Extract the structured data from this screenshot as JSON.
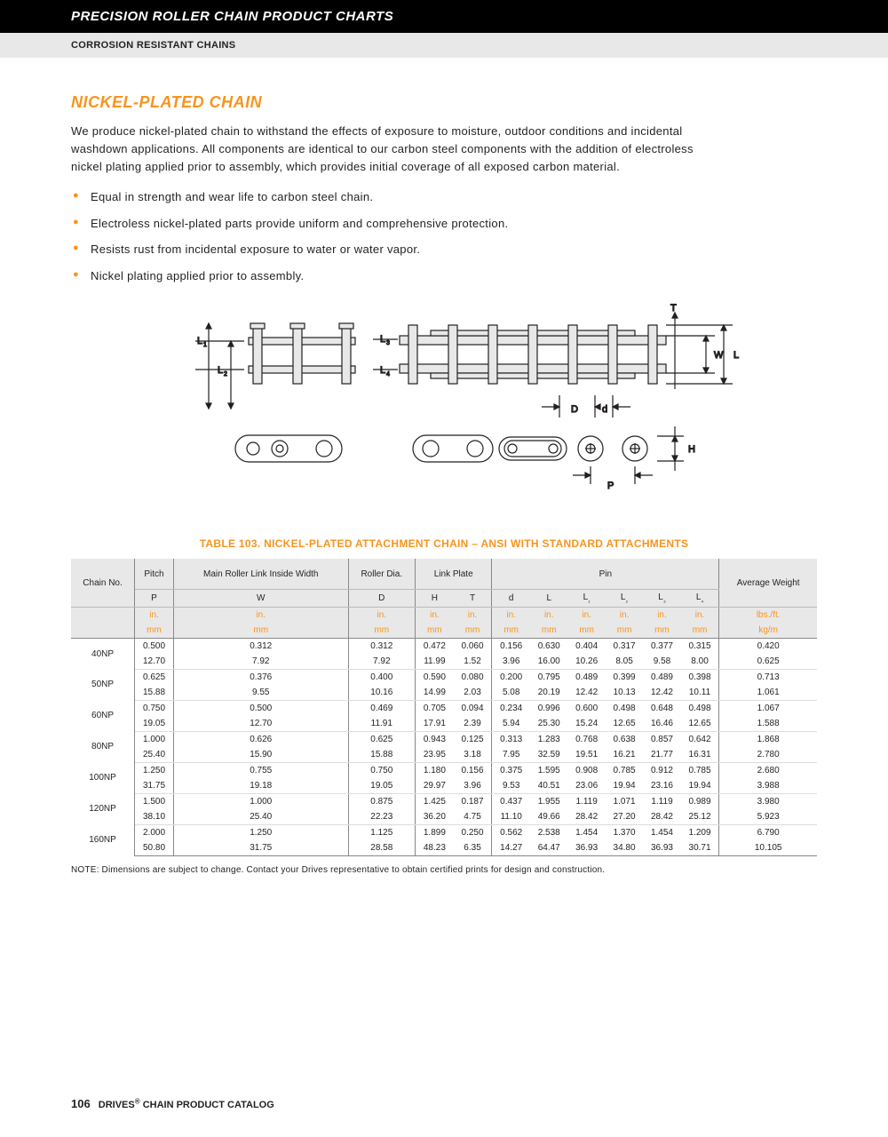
{
  "header": {
    "black": "PRECISION ROLLER CHAIN PRODUCT CHARTS",
    "gray": "CORROSION RESISTANT CHAINS"
  },
  "section": {
    "title": "NICKEL-PLATED CHAIN",
    "paragraph": "We produce nickel-plated chain to withstand the effects of exposure to moisture, outdoor conditions and incidental washdown applications. All components are identical to our carbon steel components with the addition of electroless nickel plating applied prior to assembly, which provides initial coverage of all exposed carbon material.",
    "bullets": [
      "Equal in strength and wear life to carbon steel chain.",
      "Electroless nickel-plated parts provide uniform and comprehensive protection.",
      "Resists rust from incidental exposure to water or water vapor.",
      "Nickel plating applied prior to assembly."
    ]
  },
  "table": {
    "title": "TABLE 103. NICKEL-PLATED ATTACHMENT CHAIN – ANSI WITH STANDARD ATTACHMENTS",
    "group_headers": {
      "chain_no": "Chain No.",
      "pitch": "Pitch",
      "main_roller": "Main Roller Link Inside Width",
      "roller_dia": "Roller Dia.",
      "link_plate": "Link Plate",
      "pin": "Pin",
      "avg_weight": "Average Weight"
    },
    "symbols": [
      "P",
      "W",
      "D",
      "H",
      "T",
      "d",
      "L",
      "L₁",
      "L₂",
      "L₃",
      "L₄"
    ],
    "units_in": [
      "in.",
      "in.",
      "in.",
      "in.",
      "in.",
      "in.",
      "in.",
      "in.",
      "in.",
      "in.",
      "in.",
      "lbs./ft."
    ],
    "units_mm": [
      "mm",
      "mm",
      "mm",
      "mm",
      "mm",
      "mm",
      "mm",
      "mm",
      "mm",
      "mm",
      "mm",
      "kg/m"
    ],
    "rows": [
      {
        "no": "40NP",
        "in": [
          "0.500",
          "0.312",
          "0.312",
          "0.472",
          "0.060",
          "0.156",
          "0.630",
          "0.404",
          "0.317",
          "0.377",
          "0.315",
          "0.420"
        ],
        "mm": [
          "12.70",
          "7.92",
          "7.92",
          "11.99",
          "1.52",
          "3.96",
          "16.00",
          "10.26",
          "8.05",
          "9.58",
          "8.00",
          "0.625"
        ]
      },
      {
        "no": "50NP",
        "in": [
          "0.625",
          "0.376",
          "0.400",
          "0.590",
          "0.080",
          "0.200",
          "0.795",
          "0.489",
          "0.399",
          "0.489",
          "0.398",
          "0.713"
        ],
        "mm": [
          "15.88",
          "9.55",
          "10.16",
          "14.99",
          "2.03",
          "5.08",
          "20.19",
          "12.42",
          "10.13",
          "12.42",
          "10.11",
          "1.061"
        ]
      },
      {
        "no": "60NP",
        "in": [
          "0.750",
          "0.500",
          "0.469",
          "0.705",
          "0.094",
          "0.234",
          "0.996",
          "0.600",
          "0.498",
          "0.648",
          "0.498",
          "1.067"
        ],
        "mm": [
          "19.05",
          "12.70",
          "11.91",
          "17.91",
          "2.39",
          "5.94",
          "25.30",
          "15.24",
          "12.65",
          "16.46",
          "12.65",
          "1.588"
        ]
      },
      {
        "no": "80NP",
        "in": [
          "1.000",
          "0.626",
          "0.625",
          "0.943",
          "0.125",
          "0.313",
          "1.283",
          "0.768",
          "0.638",
          "0.857",
          "0.642",
          "1.868"
        ],
        "mm": [
          "25.40",
          "15.90",
          "15.88",
          "23.95",
          "3.18",
          "7.95",
          "32.59",
          "19.51",
          "16.21",
          "21.77",
          "16.31",
          "2.780"
        ]
      },
      {
        "no": "100NP",
        "in": [
          "1.250",
          "0.755",
          "0.750",
          "1.180",
          "0.156",
          "0.375",
          "1.595",
          "0.908",
          "0.785",
          "0.912",
          "0.785",
          "2.680"
        ],
        "mm": [
          "31.75",
          "19.18",
          "19.05",
          "29.97",
          "3.96",
          "9.53",
          "40.51",
          "23.06",
          "19.94",
          "23.16",
          "19.94",
          "3.988"
        ]
      },
      {
        "no": "120NP",
        "in": [
          "1.500",
          "1.000",
          "0.875",
          "1.425",
          "0.187",
          "0.437",
          "1.955",
          "1.119",
          "1.071",
          "1.119",
          "0.989",
          "3.980"
        ],
        "mm": [
          "38.10",
          "25.40",
          "22.23",
          "36.20",
          "4.75",
          "11.10",
          "49.66",
          "28.42",
          "27.20",
          "28.42",
          "25.12",
          "5.923"
        ]
      },
      {
        "no": "160NP",
        "in": [
          "2.000",
          "1.250",
          "1.125",
          "1.899",
          "0.250",
          "0.562",
          "2.538",
          "1.454",
          "1.370",
          "1.454",
          "1.209",
          "6.790"
        ],
        "mm": [
          "50.80",
          "31.75",
          "28.58",
          "48.23",
          "6.35",
          "14.27",
          "64.47",
          "36.93",
          "34.80",
          "36.93",
          "30.71",
          "10.105"
        ]
      }
    ],
    "note": "NOTE: Dimensions are subject to change. Contact your Drives representative to obtain certified prints for design and construction."
  },
  "footer": {
    "page": "106",
    "text": "DRIVES",
    "reg": "®",
    "suffix": " CHAIN PRODUCT CATALOG"
  },
  "colors": {
    "accent": "#f7941e",
    "header_bg": "#000000",
    "subheader_bg": "#e8e8e8",
    "text": "#231f20"
  },
  "diagram": {
    "labels": [
      "L₁",
      "L₂",
      "L₃",
      "L₄",
      "T",
      "W",
      "L",
      "D",
      "d",
      "P",
      "H"
    ],
    "stroke": "#231f20",
    "fill": "#e8e8e8"
  }
}
